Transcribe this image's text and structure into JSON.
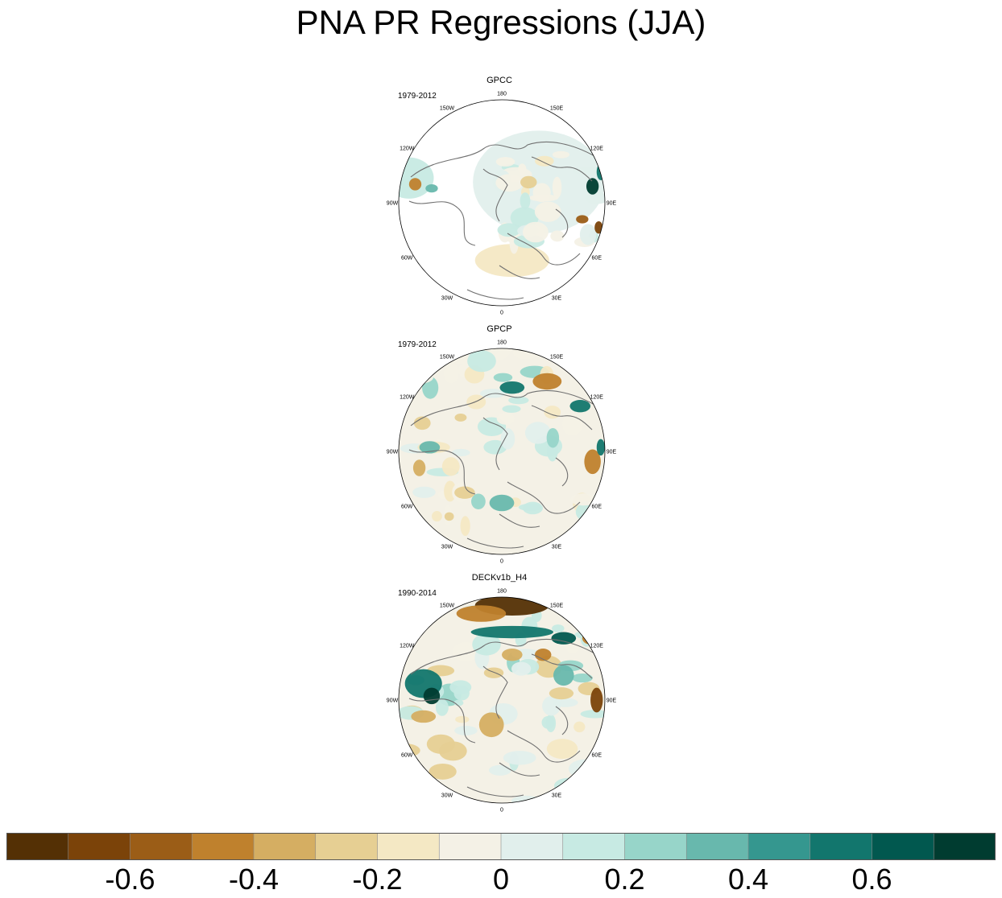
{
  "title": "PNA PR Regressions (JJA)",
  "panels": [
    {
      "name": "GPCC",
      "period": "1979-2012",
      "coverage": "land"
    },
    {
      "name": "GPCP",
      "period": "1979-2012",
      "coverage": "global"
    },
    {
      "name": "DECKv1b_H4",
      "period": "1990-2014",
      "coverage": "global"
    }
  ],
  "longitude_labels": [
    "180",
    "150E",
    "120E",
    "90E",
    "60E",
    "30E",
    "0",
    "30W",
    "60W",
    "90W",
    "120W",
    "150W"
  ],
  "colorbar": {
    "levels": [
      -0.7,
      -0.6,
      -0.5,
      -0.4,
      -0.3,
      -0.2,
      -0.1,
      0,
      0.1,
      0.2,
      0.3,
      0.4,
      0.5,
      0.6,
      0.7
    ],
    "tick_labels": [
      "-0.6",
      "-0.4",
      "-0.2",
      "0",
      "0.2",
      "0.4",
      "0.6"
    ],
    "colors": [
      "#543005",
      "#7b4309",
      "#9b5d17",
      "#bf812d",
      "#d5ae62",
      "#e6cf93",
      "#f4e8c4",
      "#f4f1e6",
      "#e1efec",
      "#c7eae3",
      "#97d5c9",
      "#68b8ad",
      "#35978f",
      "#12766d",
      "#01584f",
      "#003c30"
    ]
  },
  "colors": {
    "coastline": "#707070",
    "frame": "#000000",
    "land_missing": "#ffffff"
  }
}
